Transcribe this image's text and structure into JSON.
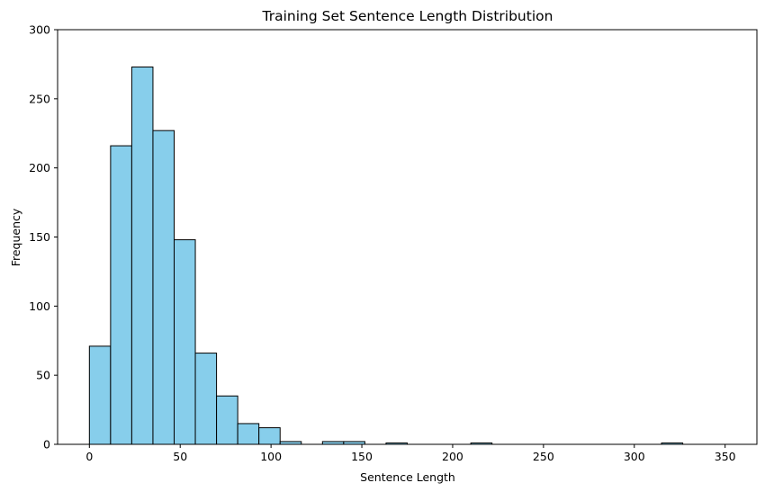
{
  "chart_data": {
    "type": "bar",
    "title": "Training Set Sentence Length Distribution",
    "xlabel": "Sentence Length",
    "ylabel": "Frequency",
    "xlim": [
      -17.5,
      367.5
    ],
    "ylim": [
      0,
      300
    ],
    "xticks": [
      0,
      50,
      100,
      150,
      200,
      250,
      300,
      350
    ],
    "yticks": [
      0,
      50,
      100,
      150,
      200,
      250,
      300
    ],
    "grid": false,
    "bar_color": "#87CEEB",
    "edge_color": "#000000",
    "bins": [
      {
        "x0": 0,
        "x1": 11.67,
        "value": 71
      },
      {
        "x0": 11.67,
        "x1": 23.33,
        "value": 216
      },
      {
        "x0": 23.33,
        "x1": 35,
        "value": 273
      },
      {
        "x0": 35,
        "x1": 46.67,
        "value": 227
      },
      {
        "x0": 46.67,
        "x1": 58.33,
        "value": 148
      },
      {
        "x0": 58.33,
        "x1": 70,
        "value": 66
      },
      {
        "x0": 70,
        "x1": 81.67,
        "value": 35
      },
      {
        "x0": 81.67,
        "x1": 93.33,
        "value": 15
      },
      {
        "x0": 93.33,
        "x1": 105,
        "value": 12
      },
      {
        "x0": 105,
        "x1": 116.67,
        "value": 2
      },
      {
        "x0": 116.67,
        "x1": 128.33,
        "value": 0
      },
      {
        "x0": 128.33,
        "x1": 140,
        "value": 2
      },
      {
        "x0": 140,
        "x1": 151.67,
        "value": 2
      },
      {
        "x0": 151.67,
        "x1": 163.33,
        "value": 0
      },
      {
        "x0": 163.33,
        "x1": 175,
        "value": 1
      },
      {
        "x0": 175,
        "x1": 186.67,
        "value": 0
      },
      {
        "x0": 186.67,
        "x1": 198.33,
        "value": 0
      },
      {
        "x0": 198.33,
        "x1": 210,
        "value": 0
      },
      {
        "x0": 210,
        "x1": 221.67,
        "value": 1
      },
      {
        "x0": 221.67,
        "x1": 233.33,
        "value": 0
      },
      {
        "x0": 233.33,
        "x1": 245,
        "value": 0
      },
      {
        "x0": 245,
        "x1": 256.67,
        "value": 0
      },
      {
        "x0": 256.67,
        "x1": 268.33,
        "value": 0
      },
      {
        "x0": 268.33,
        "x1": 280,
        "value": 0
      },
      {
        "x0": 280,
        "x1": 291.67,
        "value": 0
      },
      {
        "x0": 291.67,
        "x1": 303.33,
        "value": 0
      },
      {
        "x0": 303.33,
        "x1": 315,
        "value": 0
      },
      {
        "x0": 315,
        "x1": 326.67,
        "value": 1
      },
      {
        "x0": 326.67,
        "x1": 338.33,
        "value": 0
      },
      {
        "x0": 338.33,
        "x1": 350,
        "value": 0
      }
    ]
  }
}
